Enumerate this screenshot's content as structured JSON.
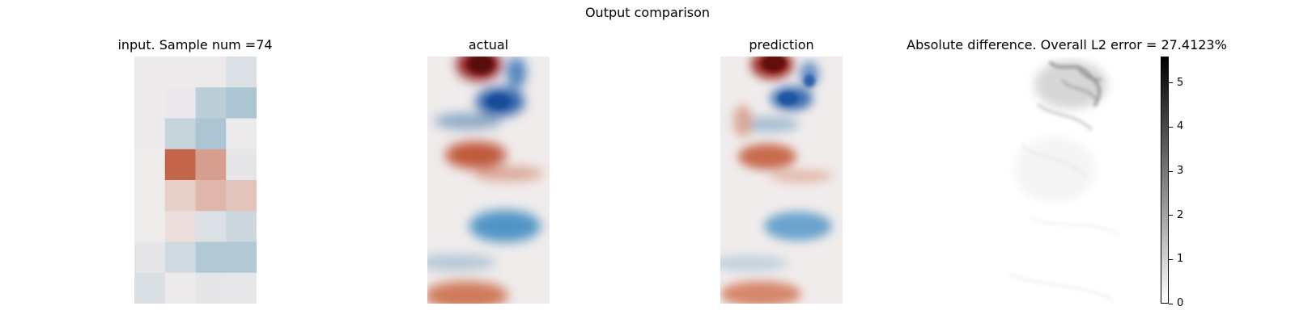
{
  "figure": {
    "title": "Output comparison"
  },
  "chart_data": [
    {
      "type": "heatmap",
      "title": "input. Sample num =74",
      "grid_rows": 8,
      "grid_cols": 4,
      "values": [
        [
          0.03,
          0.04,
          0.05,
          0.2
        ],
        [
          0.03,
          0.06,
          0.5,
          0.65
        ],
        [
          0.03,
          0.4,
          0.65,
          0.03
        ],
        [
          0.02,
          -0.95,
          -0.55,
          0.1
        ],
        [
          0.02,
          -0.2,
          -0.38,
          -0.28
        ],
        [
          0.02,
          -0.1,
          0.2,
          0.35
        ],
        [
          0.1,
          0.3,
          0.6,
          0.6
        ],
        [
          0.22,
          0.04,
          0.1,
          0.08
        ]
      ]
    },
    {
      "type": "heatmap",
      "title": "actual"
    },
    {
      "type": "heatmap",
      "title": "prediction"
    },
    {
      "type": "heatmap",
      "title": "Absolute difference. Overall L2 error = 27.4123%",
      "colorbar": {
        "min": 0,
        "max": 5.6,
        "ticks": [
          0,
          1,
          2,
          3,
          4,
          5
        ],
        "colormap": "greys"
      }
    }
  ]
}
